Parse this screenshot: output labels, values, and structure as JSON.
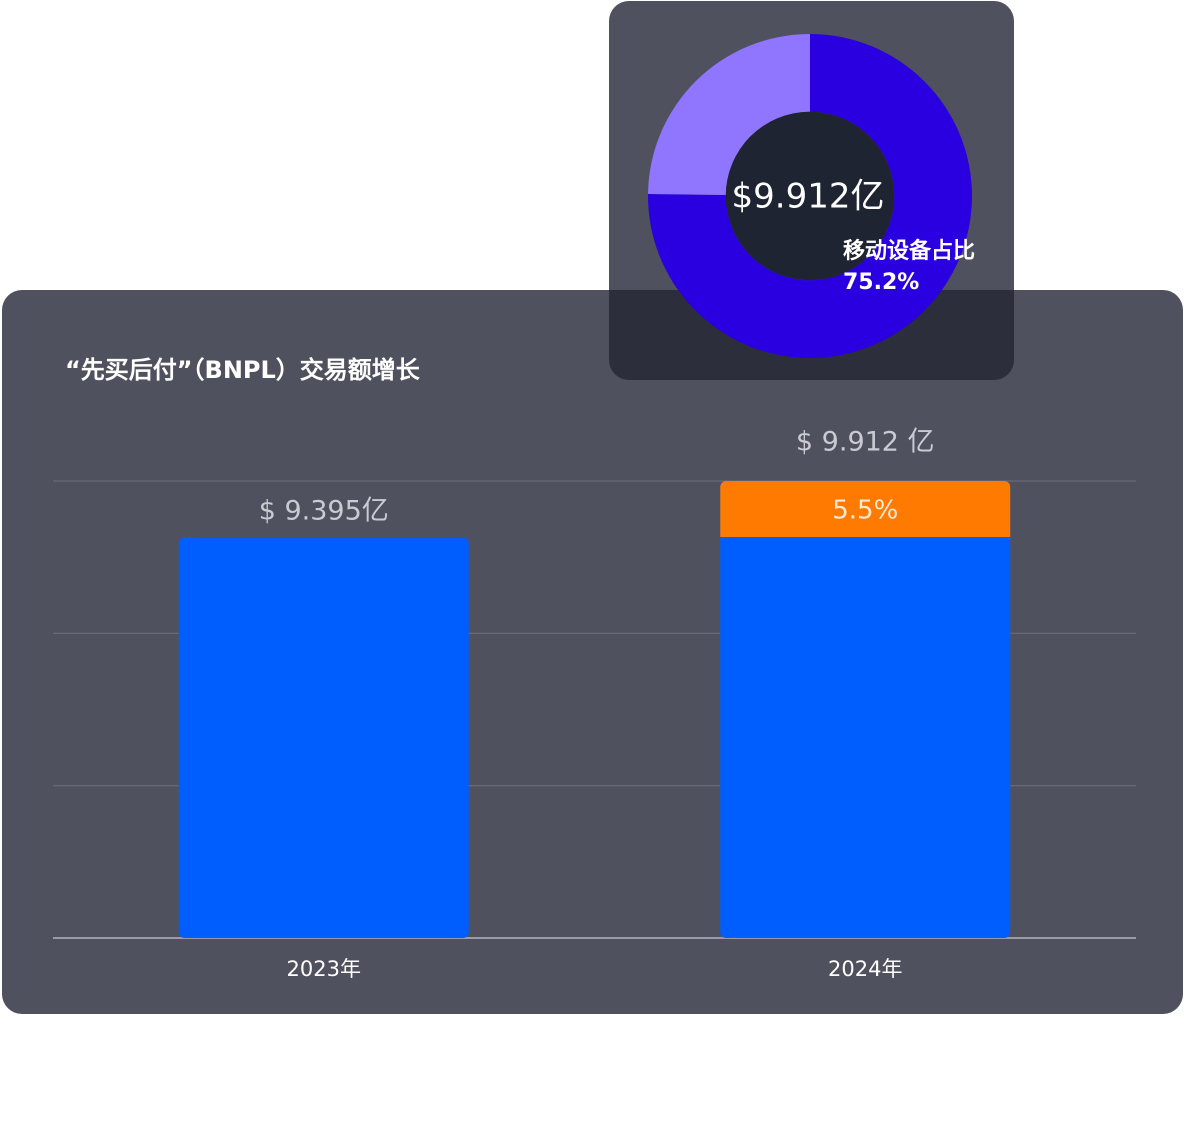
{
  "chart_data": [
    {
      "type": "bar",
      "title": "“先买后付”（BNPL）交易额增长",
      "categories": [
        "2023年",
        "2024年"
      ],
      "values": [
        9.395,
        9.912
      ],
      "value_labels": [
        "$ 9.395亿",
        "$ 9.912 亿"
      ],
      "growth": {
        "value": 5.5,
        "label": "5.5%"
      },
      "color": "#005eff",
      "growth_color": "#ff7a00",
      "ylim": [
        5.69,
        9.912
      ],
      "yticks": [
        5.69,
        7.097,
        8.505,
        9.912
      ],
      "grid": true
    },
    {
      "type": "pie",
      "center_label": "$9.912亿",
      "categories": [
        "移动设备占比",
        null
      ],
      "values": [
        75.2,
        24.8
      ],
      "value_labels": [
        "75.2%",
        null
      ],
      "colors": [
        "#2a00e0",
        "#8f75ff"
      ],
      "hole": 0.52
    }
  ]
}
